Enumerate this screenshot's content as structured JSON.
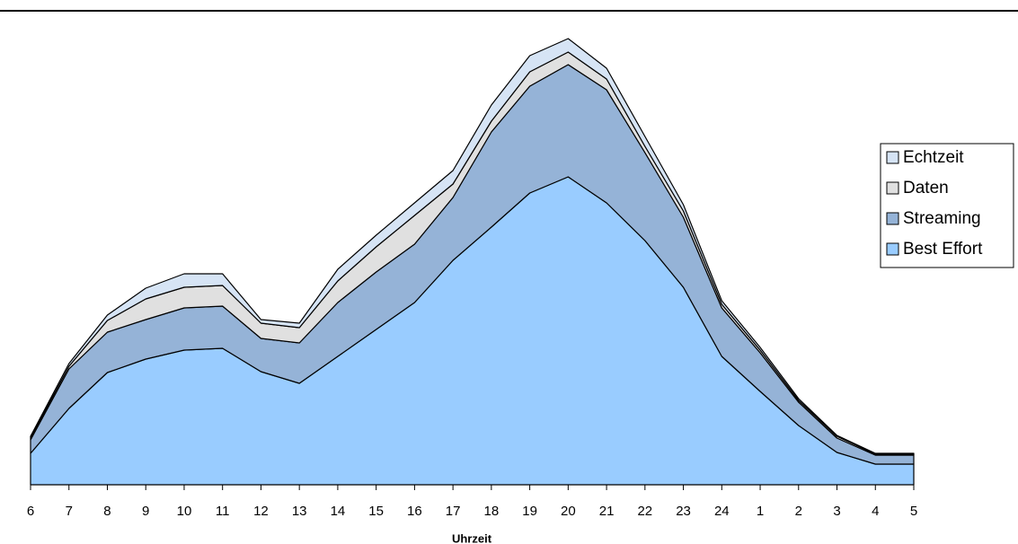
{
  "chart_data": {
    "type": "stacked-area",
    "x_label": "Uhrzeit",
    "categories": [
      "6",
      "7",
      "8",
      "9",
      "10",
      "11",
      "12",
      "13",
      "14",
      "15",
      "16",
      "17",
      "18",
      "19",
      "20",
      "21",
      "22",
      "23",
      "24",
      "1",
      "2",
      "3",
      "4",
      "5"
    ],
    "series": [
      {
        "name": "Best Effort",
        "color": "#99ccff",
        "values": [
          7,
          17,
          25,
          28,
          30,
          30.4,
          25.2,
          22.6,
          28.6,
          34.6,
          40.6,
          50,
          57.4,
          65,
          68.6,
          62.8,
          54.4,
          44,
          28.6,
          20.8,
          13.2,
          7.2,
          4.6,
          4.6
        ]
      },
      {
        "name": "Streaming",
        "color": "#95b3d7",
        "values": [
          3,
          8.8,
          9,
          8.8,
          9.4,
          9.4,
          7.4,
          9,
          12,
          12.8,
          13,
          14,
          21.2,
          23.8,
          25,
          25.2,
          19.6,
          15.6,
          10.8,
          8.6,
          5.2,
          3.2,
          2,
          2
        ]
      },
      {
        "name": "Daten",
        "color": "#e0e0e0",
        "values": [
          0.4,
          0.6,
          2.6,
          4.6,
          4.6,
          4.6,
          3.4,
          3.4,
          4.8,
          5.6,
          6.4,
          3,
          2.4,
          3.2,
          2.8,
          2.4,
          1.4,
          1.4,
          0.8,
          0.6,
          0.4,
          0.4,
          0.2,
          0.2
        ]
      },
      {
        "name": "Echtzeit",
        "color": "#d6e4f5",
        "values": [
          0.4,
          0.6,
          1.2,
          2.4,
          3,
          2.6,
          0.8,
          1,
          2.6,
          2.6,
          2.8,
          3,
          3.6,
          3.6,
          3,
          2.4,
          2.2,
          1.4,
          0.8,
          0.6,
          0.4,
          0.2,
          0.2,
          0.2
        ]
      }
    ],
    "ylim": [
      0,
      100
    ],
    "legend": "right"
  }
}
